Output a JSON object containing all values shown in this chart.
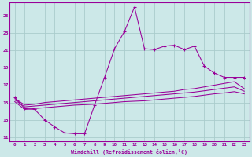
{
  "xlabel": "Windchill (Refroidissement éolien,°C)",
  "background_color": "#cce8e8",
  "grid_color": "#aacccc",
  "line_color": "#990099",
  "x_ticks": [
    0,
    1,
    2,
    3,
    4,
    5,
    6,
    7,
    8,
    9,
    10,
    11,
    12,
    13,
    14,
    15,
    16,
    17,
    18,
    19,
    20,
    21,
    22,
    23
  ],
  "ylim": [
    10.5,
    26.5
  ],
  "xlim": [
    -0.5,
    23.5
  ],
  "yticks": [
    11,
    13,
    15,
    17,
    19,
    21,
    23,
    25
  ],
  "series1_x": [
    0,
    1,
    2,
    3,
    4,
    5,
    6,
    7,
    8,
    9,
    10,
    11,
    12,
    13,
    14,
    15,
    16,
    17,
    18,
    19,
    20,
    21,
    22,
    23
  ],
  "series1_y": [
    15.6,
    14.3,
    14.2,
    13.0,
    12.2,
    11.5,
    11.4,
    11.4,
    14.7,
    17.9,
    21.2,
    23.2,
    26.0,
    21.2,
    21.1,
    21.5,
    21.6,
    21.1,
    21.5,
    19.2,
    18.4,
    17.9,
    17.9,
    17.9
  ],
  "series2_x": [
    0,
    1,
    2,
    3,
    4,
    5,
    6,
    7,
    8,
    9,
    10,
    11,
    12,
    13,
    14,
    15,
    16,
    17,
    18,
    19,
    20,
    21,
    22,
    23
  ],
  "series2_y": [
    15.5,
    14.7,
    14.8,
    15.0,
    15.1,
    15.2,
    15.3,
    15.4,
    15.5,
    15.6,
    15.7,
    15.8,
    15.9,
    16.0,
    16.1,
    16.2,
    16.3,
    16.5,
    16.6,
    16.8,
    17.0,
    17.2,
    17.4,
    16.6
  ],
  "series3_x": [
    0,
    1,
    2,
    3,
    4,
    5,
    6,
    7,
    8,
    9,
    10,
    11,
    12,
    13,
    14,
    15,
    16,
    17,
    18,
    19,
    20,
    21,
    22,
    23
  ],
  "series3_y": [
    15.3,
    14.5,
    14.6,
    14.7,
    14.8,
    14.9,
    15.0,
    15.1,
    15.2,
    15.3,
    15.4,
    15.5,
    15.6,
    15.7,
    15.8,
    15.9,
    16.0,
    16.1,
    16.2,
    16.35,
    16.5,
    16.65,
    16.8,
    16.3
  ],
  "series4_x": [
    0,
    1,
    2,
    3,
    4,
    5,
    6,
    7,
    8,
    9,
    10,
    11,
    12,
    13,
    14,
    15,
    16,
    17,
    18,
    19,
    20,
    21,
    22,
    23
  ],
  "series4_y": [
    15.1,
    14.2,
    14.3,
    14.4,
    14.5,
    14.6,
    14.7,
    14.75,
    14.8,
    14.9,
    15.0,
    15.1,
    15.15,
    15.2,
    15.3,
    15.4,
    15.5,
    15.6,
    15.7,
    15.85,
    16.0,
    16.1,
    16.25,
    16.0
  ]
}
